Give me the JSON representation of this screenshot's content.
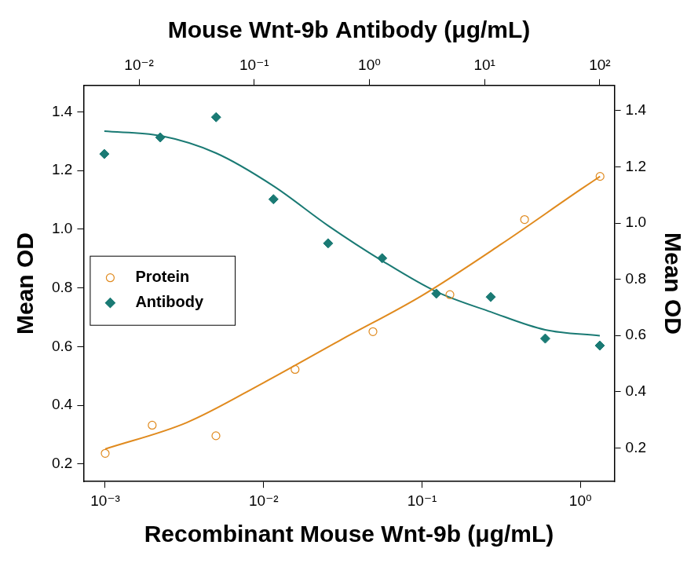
{
  "chart_data": {
    "type": "scatter",
    "x_label": "Recombinant Mouse Wnt-9b (μg/mL)",
    "x2_label": "Mouse Wnt-9b Antibody (μg/mL)",
    "y_label": "Mean OD",
    "y2_label": "Mean OD",
    "log": "x",
    "grid": false,
    "legend": "left",
    "xlim": [
      0.00073,
      1.64
    ],
    "xticks": [
      {
        "value": 0.001,
        "label": "10⁻³"
      },
      {
        "value": 0.01,
        "label": "10⁻²"
      },
      {
        "value": 0.1,
        "label": "10⁻¹"
      },
      {
        "value": 1,
        "label": "10⁰"
      }
    ],
    "x2lim": [
      0.0033,
      134
    ],
    "x2ticks": [
      {
        "value": 0.01,
        "label": "10⁻²"
      },
      {
        "value": 0.1,
        "label": "10⁻¹"
      },
      {
        "value": 1,
        "label": "10⁰"
      },
      {
        "value": 10,
        "label": "10¹"
      },
      {
        "value": 100,
        "label": "10²"
      }
    ],
    "ylim": [
      0.14,
      1.49
    ],
    "yticks": [
      0.2,
      0.4,
      0.6,
      0.8,
      {
        "value": 1.0,
        "label": "1.0"
      },
      1.2,
      1.4
    ],
    "y2lim": [
      0.08,
      1.49
    ],
    "y2ticks": [
      0.2,
      0.4,
      0.6,
      0.8,
      {
        "value": 1.0,
        "label": "1.0"
      },
      1.2,
      1.4
    ],
    "series": [
      {
        "name": "Protein",
        "color": "#e08a1e",
        "marker": "circle_open",
        "x": [
          0.001,
          0.00198,
          0.005,
          0.0158,
          0.049,
          0.15,
          0.444,
          1.33
        ],
        "values": [
          0.236,
          0.332,
          0.296,
          0.522,
          0.651,
          0.777,
          1.033,
          1.18
        ],
        "fit": {
          "x": [
            0.001,
            0.00327,
            0.01,
            0.031,
            0.1,
            0.316,
            1,
            1.33
          ],
          "values": [
            0.251,
            0.341,
            0.477,
            0.624,
            0.774,
            0.949,
            1.135,
            1.18
          ]
        }
      },
      {
        "name": "Antibody",
        "color": "#1a7a74",
        "marker": "diamond",
        "axis": "y2",
        "x": [
          0.005,
          0.0153,
          0.0467,
          0.147,
          0.438,
          1.29,
          3.81,
          11.3,
          33.6,
          100
        ],
        "values": [
          1.246,
          1.305,
          1.377,
          1.085,
          0.928,
          0.875,
          0.749,
          0.737,
          0.589,
          0.564
        ],
        "fit": {
          "x": [
            0.005,
            0.0153,
            0.0467,
            0.147,
            0.438,
            1.29,
            3.81,
            11.3,
            33.6,
            100
          ],
          "values": [
            1.327,
            1.311,
            1.249,
            1.132,
            0.991,
            0.866,
            0.756,
            0.684,
            0.62,
            0.599
          ]
        }
      }
    ]
  }
}
